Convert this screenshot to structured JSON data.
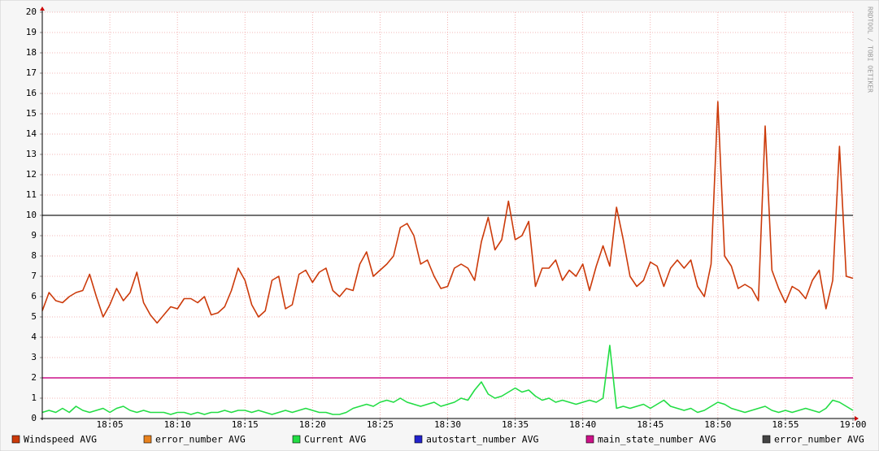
{
  "chart_data": {
    "type": "line",
    "watermark": "RRDTOOL / TOBI OETIKER",
    "x": [
      1080,
      1080.5,
      1081,
      1081.5,
      1082,
      1082.5,
      1083,
      1083.5,
      1084,
      1084.5,
      1085,
      1085.5,
      1086,
      1086.5,
      1087,
      1087.5,
      1088,
      1088.5,
      1089,
      1089.5,
      1090,
      1090.5,
      1091,
      1091.5,
      1092,
      1092.5,
      1093,
      1093.5,
      1094,
      1094.5,
      1095,
      1095.5,
      1096,
      1096.5,
      1097,
      1097.5,
      1098,
      1098.5,
      1099,
      1099.5,
      1100,
      1100.5,
      1101,
      1101.5,
      1102,
      1102.5,
      1103,
      1103.5,
      1104,
      1104.5,
      1105,
      1105.5,
      1106,
      1106.5,
      1107,
      1107.5,
      1108,
      1108.5,
      1109,
      1109.5,
      1110,
      1110.5,
      1111,
      1111.5,
      1112,
      1112.5,
      1113,
      1113.5,
      1114,
      1114.5,
      1115,
      1115.5,
      1116,
      1116.5,
      1117,
      1117.5,
      1118,
      1118.5,
      1119,
      1119.5,
      1120,
      1120.5,
      1121,
      1121.5,
      1122,
      1122.5,
      1123,
      1123.5,
      1124,
      1124.5,
      1125,
      1125.5,
      1126,
      1126.5,
      1127,
      1127.5,
      1128,
      1128.5,
      1129,
      1129.5,
      1130,
      1130.5,
      1131,
      1131.5,
      1132,
      1132.5,
      1133,
      1133.5,
      1134,
      1134.5,
      1135,
      1135.5,
      1136,
      1136.5,
      1137,
      1137.5,
      1138,
      1138.5,
      1139,
      1139.5,
      1140
    ],
    "xlim": [
      1080,
      1140
    ],
    "xticks": [
      {
        "value": 1085,
        "label": "18:05"
      },
      {
        "value": 1090,
        "label": "18:10"
      },
      {
        "value": 1095,
        "label": "18:15"
      },
      {
        "value": 1100,
        "label": "18:20"
      },
      {
        "value": 1105,
        "label": "18:25"
      },
      {
        "value": 1110,
        "label": "18:30"
      },
      {
        "value": 1115,
        "label": "18:35"
      },
      {
        "value": 1120,
        "label": "18:40"
      },
      {
        "value": 1125,
        "label": "18:45"
      },
      {
        "value": 1130,
        "label": "18:50"
      },
      {
        "value": 1135,
        "label": "18:55"
      },
      {
        "value": 1140,
        "label": "19:00"
      }
    ],
    "ylim": [
      0,
      20
    ],
    "yticks": [
      0,
      1,
      2,
      3,
      4,
      5,
      6,
      7,
      8,
      9,
      10,
      11,
      12,
      13,
      14,
      15,
      16,
      17,
      18,
      19,
      20
    ],
    "grid": true,
    "series": [
      {
        "name": "Windspeed AVG",
        "color": "#cc3a0a",
        "values": [
          5.3,
          6.2,
          5.8,
          5.7,
          6.0,
          6.2,
          6.3,
          7.1,
          6.0,
          5.0,
          5.6,
          6.4,
          5.8,
          6.2,
          7.2,
          5.7,
          5.1,
          4.7,
          5.1,
          5.5,
          5.4,
          5.9,
          5.9,
          5.7,
          6.0,
          5.1,
          5.2,
          5.5,
          6.3,
          7.4,
          6.8,
          5.6,
          5.0,
          5.3,
          6.8,
          7.0,
          5.4,
          5.6,
          7.1,
          7.3,
          6.7,
          7.2,
          7.4,
          6.3,
          6.0,
          6.4,
          6.3,
          7.6,
          8.2,
          7.0,
          7.3,
          7.6,
          8.0,
          9.4,
          9.6,
          9.0,
          7.6,
          7.8,
          7.0,
          6.4,
          6.5,
          7.4,
          7.6,
          7.4,
          6.8,
          8.7,
          9.9,
          8.3,
          8.8,
          10.7,
          8.8,
          9.0,
          9.7,
          6.5,
          7.4,
          7.4,
          7.8,
          6.8,
          7.3,
          7.0,
          7.6,
          6.3,
          7.5,
          8.5,
          7.5,
          10.4,
          8.8,
          7.0,
          6.5,
          6.8,
          7.7,
          7.5,
          6.5,
          7.4,
          7.8,
          7.4,
          7.8,
          6.5,
          6.0,
          7.6,
          15.6,
          8.0,
          7.5,
          6.4,
          6.6,
          6.4,
          5.8,
          14.4,
          7.3,
          6.4,
          5.7,
          6.5,
          6.3,
          5.9,
          6.8,
          7.3,
          5.4,
          6.8,
          13.4,
          7.0,
          6.9
        ]
      },
      {
        "name": "error_number AVG",
        "color": "#e8821e",
        "values": [
          null,
          null,
          null,
          null,
          null,
          null,
          null,
          null,
          null,
          null,
          null,
          null,
          null,
          null,
          null,
          null,
          null,
          null,
          null,
          null,
          null,
          null,
          null,
          null,
          null,
          null,
          null,
          null,
          null,
          null,
          null,
          null,
          null,
          null,
          null,
          null,
          null,
          null,
          null,
          null,
          null,
          null,
          null,
          null,
          null,
          null,
          null,
          null,
          null,
          null,
          null,
          null,
          null,
          null,
          null,
          null,
          null,
          null,
          null,
          null,
          null,
          null,
          null,
          null,
          null,
          null,
          null,
          null,
          null,
          null,
          null,
          null,
          null,
          null,
          null,
          null,
          null,
          null,
          null,
          null,
          null,
          null,
          null,
          null,
          null,
          null,
          null,
          null,
          null,
          null,
          null,
          null,
          null,
          null,
          null,
          null,
          null,
          null,
          null,
          null,
          null,
          null,
          null,
          null,
          null,
          null,
          null,
          null,
          null,
          null,
          null,
          null,
          null,
          null,
          null,
          null,
          null,
          null,
          null,
          null,
          null
        ]
      },
      {
        "name": "Current AVG",
        "color": "#22dd44",
        "values": [
          0.3,
          0.4,
          0.3,
          0.5,
          0.3,
          0.6,
          0.4,
          0.3,
          0.4,
          0.5,
          0.3,
          0.5,
          0.6,
          0.4,
          0.3,
          0.4,
          0.3,
          0.3,
          0.3,
          0.2,
          0.3,
          0.3,
          0.2,
          0.3,
          0.2,
          0.3,
          0.3,
          0.4,
          0.3,
          0.4,
          0.4,
          0.3,
          0.4,
          0.3,
          0.2,
          0.3,
          0.4,
          0.3,
          0.4,
          0.5,
          0.4,
          0.3,
          0.3,
          0.2,
          0.2,
          0.3,
          0.5,
          0.6,
          0.7,
          0.6,
          0.8,
          0.9,
          0.8,
          1.0,
          0.8,
          0.7,
          0.6,
          0.7,
          0.8,
          0.6,
          0.7,
          0.8,
          1.0,
          0.9,
          1.4,
          1.8,
          1.2,
          1.0,
          1.1,
          1.3,
          1.5,
          1.3,
          1.4,
          1.1,
          0.9,
          1.0,
          0.8,
          0.9,
          0.8,
          0.7,
          0.8,
          0.9,
          0.8,
          1.0,
          3.6,
          0.5,
          0.6,
          0.5,
          0.6,
          0.7,
          0.5,
          0.7,
          0.9,
          0.6,
          0.5,
          0.4,
          0.5,
          0.3,
          0.4,
          0.6,
          0.8,
          0.7,
          0.5,
          0.4,
          0.3,
          0.4,
          0.5,
          0.6,
          0.4,
          0.3,
          0.4,
          0.3,
          0.4,
          0.5,
          0.4,
          0.3,
          0.5,
          0.9,
          0.8,
          0.6,
          0.4
        ]
      },
      {
        "name": "autostart_number AVG",
        "color": "#2222cc",
        "values": [
          null,
          null,
          null,
          null,
          null,
          null,
          null,
          null,
          null,
          null,
          null,
          null,
          null,
          null,
          null,
          null,
          null,
          null,
          null,
          null,
          null,
          null,
          null,
          null,
          null,
          null,
          null,
          null,
          null,
          null,
          null,
          null,
          null,
          null,
          null,
          null,
          null,
          null,
          null,
          null,
          null,
          null,
          null,
          null,
          null,
          null,
          null,
          null,
          null,
          null,
          null,
          null,
          null,
          null,
          null,
          null,
          null,
          null,
          null,
          null,
          null,
          null,
          null,
          null,
          null,
          null,
          null,
          null,
          null,
          null,
          null,
          null,
          null,
          null,
          null,
          null,
          null,
          null,
          null,
          null,
          null,
          null,
          null,
          null,
          null,
          null,
          null,
          null,
          null,
          null,
          null,
          null,
          null,
          null,
          null,
          null,
          null,
          null,
          null,
          null,
          null,
          null,
          null,
          null,
          null,
          null,
          null,
          null,
          null,
          null,
          null,
          null,
          null,
          null,
          null,
          null,
          null,
          null,
          null,
          null,
          null
        ]
      },
      {
        "name": "main_state_number AVG",
        "color": "#cc1188",
        "values": [
          2,
          2,
          2,
          2,
          2,
          2,
          2,
          2,
          2,
          2,
          2,
          2,
          2,
          2,
          2,
          2,
          2,
          2,
          2,
          2,
          2,
          2,
          2,
          2,
          2,
          2,
          2,
          2,
          2,
          2,
          2,
          2,
          2,
          2,
          2,
          2,
          2,
          2,
          2,
          2,
          2,
          2,
          2,
          2,
          2,
          2,
          2,
          2,
          2,
          2,
          2,
          2,
          2,
          2,
          2,
          2,
          2,
          2,
          2,
          2,
          2,
          2,
          2,
          2,
          2,
          2,
          2,
          2,
          2,
          2,
          2,
          2,
          2,
          2,
          2,
          2,
          2,
          2,
          2,
          2,
          2,
          2,
          2,
          2,
          2,
          2,
          2,
          2,
          2,
          2,
          2,
          2,
          2,
          2,
          2,
          2,
          2,
          2,
          2,
          2,
          2,
          2,
          2,
          2,
          2,
          2,
          2,
          2,
          2,
          2,
          2,
          2,
          2,
          2,
          2,
          2,
          2,
          2,
          2,
          2,
          2
        ]
      },
      {
        "name": "error_number AVG",
        "color": "#444444",
        "values": [
          10,
          10,
          10,
          10,
          10,
          10,
          10,
          10,
          10,
          10,
          10,
          10,
          10,
          10,
          10,
          10,
          10,
          10,
          10,
          10,
          10,
          10,
          10,
          10,
          10,
          10,
          10,
          10,
          10,
          10,
          10,
          10,
          10,
          10,
          10,
          10,
          10,
          10,
          10,
          10,
          10,
          10,
          10,
          10,
          10,
          10,
          10,
          10,
          10,
          10,
          10,
          10,
          10,
          10,
          10,
          10,
          10,
          10,
          10,
          10,
          10,
          10,
          10,
          10,
          10,
          10,
          10,
          10,
          10,
          10,
          10,
          10,
          10,
          10,
          10,
          10,
          10,
          10,
          10,
          10,
          10,
          10,
          10,
          10,
          10,
          10,
          10,
          10,
          10,
          10,
          10,
          10,
          10,
          10,
          10,
          10,
          10,
          10,
          10,
          10,
          10,
          10,
          10,
          10,
          10,
          10,
          10,
          10,
          10,
          10,
          10,
          10,
          10,
          10,
          10,
          10,
          10,
          10,
          10,
          10,
          10
        ]
      }
    ]
  }
}
